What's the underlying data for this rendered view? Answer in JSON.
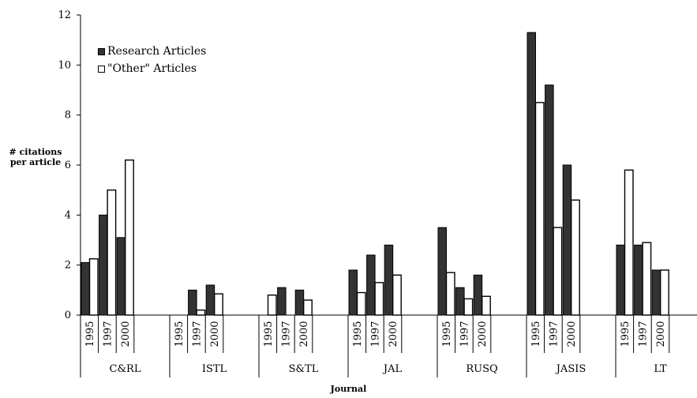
{
  "chart_data": {
    "type": "bar",
    "title": "",
    "xlabel": "Journal",
    "ylabel": "# citations per article",
    "ylim": [
      0,
      12
    ],
    "yticks": [
      "0",
      "2",
      "4",
      "6",
      "8",
      "10",
      "12"
    ],
    "grid": false,
    "legend_position": "top-left",
    "groups": [
      {
        "journal": "C&RL",
        "years": [
          "1995",
          "1997",
          "2000"
        ]
      },
      {
        "journal": "ISTL",
        "years": [
          "1995",
          "1997",
          "2000"
        ]
      },
      {
        "journal": "S&TL",
        "years": [
          "1995",
          "1997",
          "2000"
        ]
      },
      {
        "journal": "JAL",
        "years": [
          "1995",
          "1997",
          "2000"
        ]
      },
      {
        "journal": "RUSQ",
        "years": [
          "1995",
          "1997",
          "2000"
        ]
      },
      {
        "journal": "JASIS",
        "years": [
          "1995",
          "1997",
          "2000"
        ]
      },
      {
        "journal": "LT",
        "years": [
          "1995",
          "1997",
          "2000"
        ]
      }
    ],
    "series": [
      {
        "name": "Research Articles",
        "color": "#333333",
        "values": [
          2.1,
          4.0,
          3.1,
          0,
          1.0,
          1.2,
          0,
          1.1,
          1.0,
          1.8,
          2.4,
          2.8,
          3.5,
          1.1,
          1.6,
          11.3,
          9.2,
          6.0,
          2.8,
          2.8,
          1.8
        ]
      },
      {
        "name": "\"Other\" Articles",
        "color": "#ffffff",
        "values": [
          2.25,
          5.0,
          6.2,
          0,
          0.2,
          0.85,
          0.8,
          0,
          0.6,
          0.9,
          1.3,
          1.6,
          1.7,
          0.65,
          0.75,
          8.5,
          3.5,
          4.6,
          5.8,
          2.9,
          1.8
        ]
      }
    ]
  }
}
